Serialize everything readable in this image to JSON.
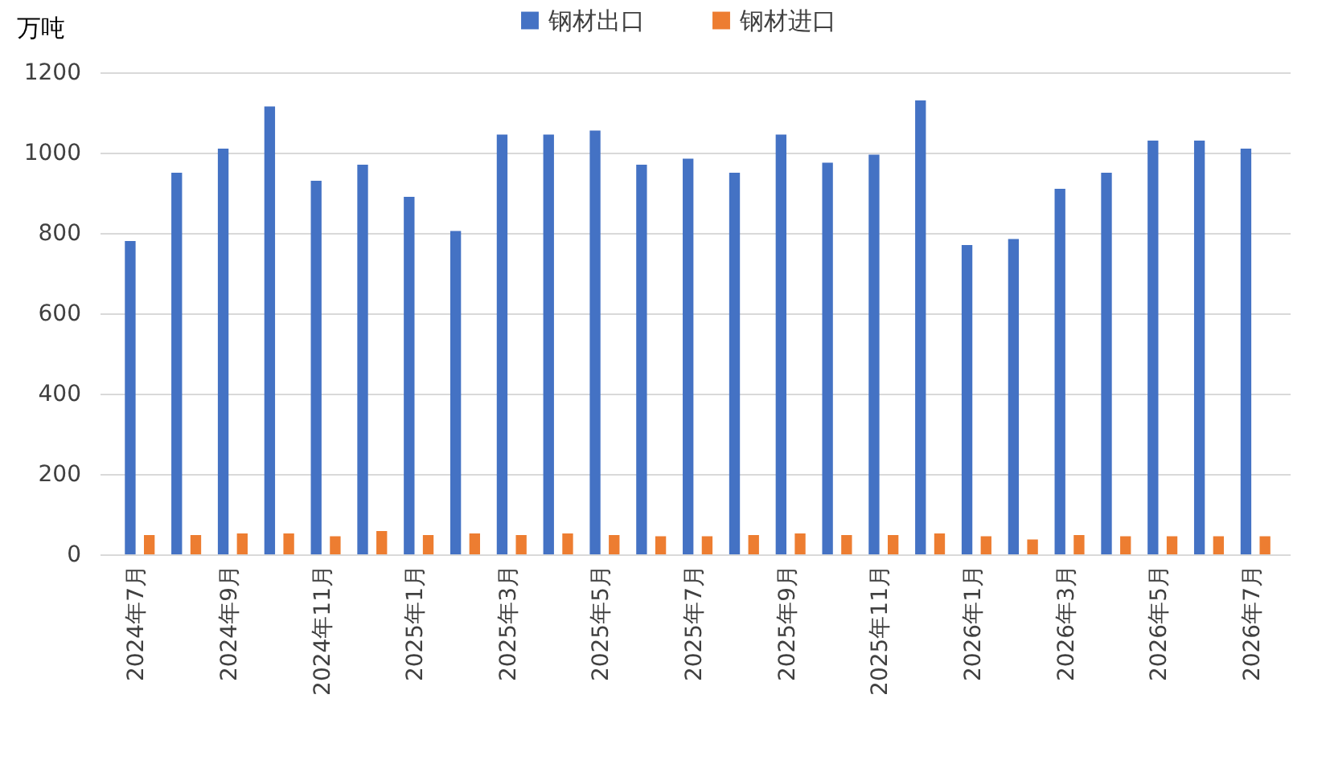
{
  "chart_data": {
    "type": "bar",
    "ylabel": "万吨",
    "categories": [
      "2024年7月",
      null,
      "2024年9月",
      null,
      "2024年11月",
      null,
      "2025年1月",
      null,
      "2025年3月",
      null,
      "2025年5月",
      null,
      "2025年7月",
      null,
      "2025年9月",
      null,
      "2025年11月",
      null,
      "2026年1月",
      null,
      "2026年3月",
      null,
      "2026年5月",
      null,
      "2026年7月"
    ],
    "series": [
      {
        "name": "钢材出口",
        "color": "#4472c4",
        "values": [
          780,
          950,
          1010,
          1115,
          930,
          970,
          890,
          805,
          1045,
          1045,
          1055,
          970,
          985,
          950,
          1045,
          975,
          995,
          1130,
          770,
          785,
          910,
          950,
          1030,
          1030,
          1010
        ]
      },
      {
        "name": "钢材进口",
        "color": "#ed7d31",
        "values": [
          48,
          48,
          52,
          52,
          45,
          58,
          48,
          52,
          48,
          52,
          48,
          45,
          45,
          48,
          52,
          48,
          48,
          52,
          45,
          37,
          48,
          45,
          45,
          45,
          45
        ]
      }
    ],
    "ylim": [
      0,
      1200
    ],
    "yticks": [
      0,
      200,
      400,
      600,
      800,
      1000,
      1200
    ],
    "grid": "y",
    "legend": "top"
  }
}
